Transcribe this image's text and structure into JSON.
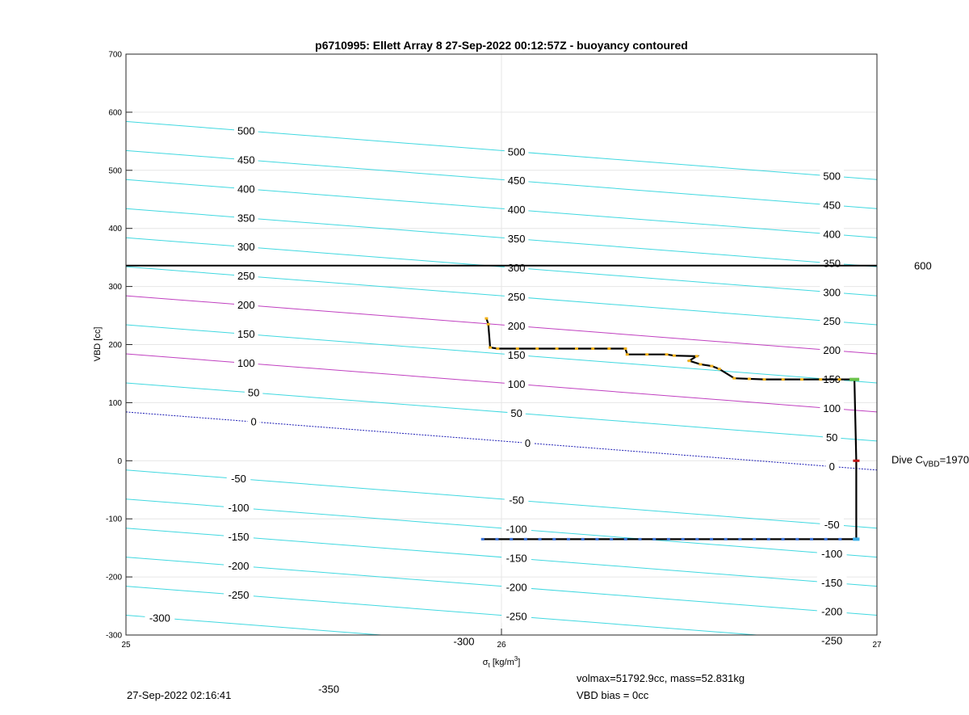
{
  "chart_data": {
    "type": "line",
    "title": "p6710995: Ellett Array 8 27-Sep-2022 00:12:57Z - buoyancy contoured",
    "xlabel_symbol": "σ",
    "xlabel_sub": "t",
    "xlabel_unit": " [kg/m",
    "xlabel_sup": "3",
    "xlabel_end": "]",
    "ylabel": "VBD [cc]",
    "xlim": [
      25,
      27
    ],
    "ylim": [
      -300,
      700
    ],
    "xticks": [
      "25",
      "26",
      "27"
    ],
    "yticks": [
      "-300",
      "-200",
      "-100",
      "0",
      "100",
      "200",
      "300",
      "400",
      "500",
      "600",
      "700"
    ],
    "grid": true,
    "contour_slope": -50,
    "contours": [
      {
        "level": -350,
        "y_at_25": -366,
        "color": "#40d8e0",
        "labels": [
          [
            25.54,
            -350
          ]
        ]
      },
      {
        "level": -300,
        "y_at_25": -266,
        "color": "#40d8e0",
        "labels": [
          [
            25.09,
            -300
          ],
          [
            25.9,
            -300
          ]
        ]
      },
      {
        "level": -250,
        "y_at_25": -216,
        "color": "#40d8e0",
        "labels": [
          [
            25.3,
            -250
          ],
          [
            26.04,
            -250
          ],
          [
            26.88,
            -250
          ]
        ]
      },
      {
        "level": -200,
        "y_at_25": -166,
        "color": "#40d8e0",
        "labels": [
          [
            25.3,
            -200
          ],
          [
            26.04,
            -200
          ],
          [
            26.88,
            -200
          ]
        ]
      },
      {
        "level": -150,
        "y_at_25": -116,
        "color": "#40d8e0",
        "labels": [
          [
            25.3,
            -150
          ],
          [
            26.04,
            -150
          ],
          [
            26.88,
            -150
          ]
        ]
      },
      {
        "level": -100,
        "y_at_25": -66,
        "color": "#40d8e0",
        "labels": [
          [
            25.3,
            -100
          ],
          [
            26.04,
            -100
          ],
          [
            26.88,
            -100
          ]
        ]
      },
      {
        "level": -50,
        "y_at_25": -16,
        "color": "#40d8e0",
        "labels": [
          [
            25.3,
            -50
          ],
          [
            26.04,
            -50
          ],
          [
            26.88,
            -50
          ]
        ]
      },
      {
        "level": 0,
        "y_at_25": 84,
        "color": "#1c1cb4",
        "dashed": true,
        "labels": [
          [
            25.34,
            0
          ],
          [
            26.07,
            0
          ],
          [
            26.88,
            0
          ]
        ]
      },
      {
        "level": 50,
        "y_at_25": 134,
        "color": "#40d8e0",
        "labels": [
          [
            25.34,
            50
          ],
          [
            26.04,
            50
          ],
          [
            26.88,
            50
          ]
        ]
      },
      {
        "level": 100,
        "y_at_25": 184,
        "color": "#c040c0",
        "labels": [
          [
            25.32,
            100
          ],
          [
            26.04,
            100
          ],
          [
            26.88,
            100
          ]
        ]
      },
      {
        "level": 150,
        "y_at_25": 234,
        "color": "#40d8e0",
        "labels": [
          [
            25.32,
            150
          ],
          [
            26.04,
            150
          ],
          [
            26.88,
            150
          ]
        ]
      },
      {
        "level": 200,
        "y_at_25": 284,
        "color": "#c040c0",
        "labels": [
          [
            25.32,
            200
          ],
          [
            26.04,
            200
          ],
          [
            26.88,
            200
          ]
        ]
      },
      {
        "level": 250,
        "y_at_25": 334,
        "color": "#40d8e0",
        "labels": [
          [
            25.32,
            250
          ],
          [
            26.04,
            250
          ],
          [
            26.88,
            250
          ]
        ]
      },
      {
        "level": 300,
        "y_at_25": 384,
        "color": "#40d8e0",
        "labels": [
          [
            25.32,
            300
          ],
          [
            26.04,
            300
          ],
          [
            26.88,
            300
          ]
        ]
      },
      {
        "level": 350,
        "y_at_25": 434,
        "color": "#40d8e0",
        "labels": [
          [
            25.32,
            350
          ],
          [
            26.04,
            350
          ],
          [
            26.88,
            350
          ]
        ]
      },
      {
        "level": 400,
        "y_at_25": 484,
        "color": "#40d8e0",
        "labels": [
          [
            25.32,
            400
          ],
          [
            26.04,
            400
          ],
          [
            26.88,
            400
          ]
        ]
      },
      {
        "level": 450,
        "y_at_25": 534,
        "color": "#40d8e0",
        "labels": [
          [
            25.32,
            450
          ],
          [
            26.04,
            450
          ],
          [
            26.88,
            450
          ]
        ]
      },
      {
        "level": 500,
        "y_at_25": 584,
        "color": "#40d8e0",
        "labels": [
          [
            25.32,
            500
          ],
          [
            26.04,
            500
          ],
          [
            26.88,
            500
          ]
        ]
      }
    ],
    "hline": {
      "y": 336,
      "label": "600",
      "color": "#000000"
    },
    "dive_label_main": "Dive C",
    "dive_label_sub": "VBD",
    "dive_label_end": "=1970",
    "dive_label_y": 0,
    "ascent_track": [
      [
        25.96,
        245
      ],
      [
        25.965,
        235
      ],
      [
        25.97,
        195
      ],
      [
        25.99,
        193
      ],
      [
        26.2,
        193
      ],
      [
        26.33,
        193
      ],
      [
        26.335,
        183
      ],
      [
        26.44,
        183
      ],
      [
        26.46,
        181
      ],
      [
        26.52,
        180
      ],
      [
        26.5,
        172
      ],
      [
        26.53,
        166
      ],
      [
        26.56,
        163
      ],
      [
        26.58,
        158
      ],
      [
        26.62,
        142
      ],
      [
        26.7,
        140
      ],
      [
        26.9,
        140
      ],
      [
        26.94,
        140
      ]
    ],
    "vertical_track": [
      [
        26.94,
        140
      ],
      [
        26.945,
        0
      ],
      [
        26.945,
        -135
      ]
    ],
    "descent_track": [
      [
        25.95,
        -135
      ],
      [
        26.94,
        -135
      ]
    ],
    "ascent_marker_color": "#f2b21a",
    "descent_marker_color": "#3a72d8",
    "start_marker": {
      "x": 26.94,
      "y": 140,
      "color": "#6ac24a"
    },
    "apogee_marker": {
      "x": 26.945,
      "y": 0,
      "color": "#c01010"
    },
    "end_marker": {
      "x": 26.945,
      "y": -135,
      "color": "#3ab0e8"
    }
  },
  "footer": {
    "timestamp": "27-Sep-2022 02:16:41",
    "volmax": "volmax=51792.9cc, mass=52.831kg",
    "vbd_bias": "VBD bias = 0cc"
  }
}
